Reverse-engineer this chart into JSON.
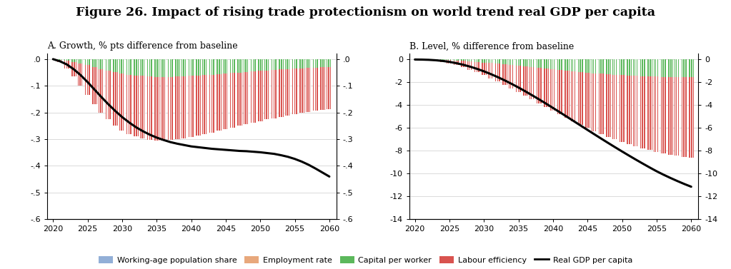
{
  "title": "Figure 26. Impact of rising trade protectionism on world trend real GDP per capita",
  "title_fontsize": 12.5,
  "subtitle_A": "A. Growth, % pts difference from baseline",
  "subtitle_B": "B. Level, % difference from baseline",
  "years": [
    2020,
    2021,
    2022,
    2023,
    2024,
    2025,
    2026,
    2027,
    2028,
    2029,
    2030,
    2031,
    2032,
    2033,
    2034,
    2035,
    2036,
    2037,
    2038,
    2039,
    2040,
    2041,
    2042,
    2043,
    2044,
    2045,
    2046,
    2047,
    2048,
    2049,
    2050,
    2051,
    2052,
    2053,
    2054,
    2055,
    2056,
    2057,
    2058,
    2059,
    2060
  ],
  "A_labour": [
    0.0,
    -0.01,
    -0.03,
    -0.055,
    -0.082,
    -0.11,
    -0.138,
    -0.163,
    -0.183,
    -0.2,
    -0.213,
    -0.222,
    -0.229,
    -0.234,
    -0.237,
    -0.238,
    -0.238,
    -0.237,
    -0.235,
    -0.232,
    -0.229,
    -0.225,
    -0.221,
    -0.217,
    -0.213,
    -0.208,
    -0.204,
    -0.2,
    -0.196,
    -0.192,
    -0.188,
    -0.184,
    -0.181,
    -0.177,
    -0.174,
    -0.171,
    -0.168,
    -0.165,
    -0.162,
    -0.16,
    -0.157
  ],
  "A_capital": [
    0.0,
    -0.002,
    -0.005,
    -0.01,
    -0.016,
    -0.023,
    -0.03,
    -0.037,
    -0.043,
    -0.049,
    -0.054,
    -0.058,
    -0.061,
    -0.063,
    -0.065,
    -0.066,
    -0.066,
    -0.066,
    -0.065,
    -0.064,
    -0.063,
    -0.061,
    -0.06,
    -0.058,
    -0.056,
    -0.054,
    -0.052,
    -0.05,
    -0.048,
    -0.046,
    -0.044,
    -0.042,
    -0.04,
    -0.039,
    -0.037,
    -0.036,
    -0.034,
    -0.033,
    -0.032,
    -0.031,
    -0.03
  ],
  "A_line": [
    0.0,
    -0.008,
    -0.02,
    -0.038,
    -0.06,
    -0.086,
    -0.114,
    -0.142,
    -0.169,
    -0.194,
    -0.217,
    -0.237,
    -0.255,
    -0.27,
    -0.283,
    -0.294,
    -0.303,
    -0.311,
    -0.317,
    -0.322,
    -0.327,
    -0.33,
    -0.333,
    -0.336,
    -0.338,
    -0.34,
    -0.342,
    -0.344,
    -0.345,
    -0.347,
    -0.349,
    -0.352,
    -0.355,
    -0.36,
    -0.366,
    -0.374,
    -0.384,
    -0.396,
    -0.41,
    -0.425,
    -0.44
  ],
  "B_labour": [
    0.0,
    -0.01,
    -0.04,
    -0.09,
    -0.17,
    -0.27,
    -0.4,
    -0.55,
    -0.72,
    -0.91,
    -1.12,
    -1.34,
    -1.57,
    -1.81,
    -2.06,
    -2.31,
    -2.57,
    -2.83,
    -3.1,
    -3.36,
    -3.62,
    -3.88,
    -4.13,
    -4.38,
    -4.62,
    -4.85,
    -5.07,
    -5.28,
    -5.48,
    -5.67,
    -5.85,
    -6.02,
    -6.18,
    -6.33,
    -6.47,
    -6.6,
    -6.71,
    -6.81,
    -6.9,
    -6.97,
    -7.03
  ],
  "B_capital": [
    0.0,
    -0.003,
    -0.01,
    -0.022,
    -0.04,
    -0.064,
    -0.094,
    -0.129,
    -0.169,
    -0.213,
    -0.261,
    -0.313,
    -0.368,
    -0.426,
    -0.486,
    -0.547,
    -0.61,
    -0.673,
    -0.737,
    -0.8,
    -0.863,
    -0.924,
    -0.984,
    -1.041,
    -1.096,
    -1.148,
    -1.197,
    -1.243,
    -1.286,
    -1.326,
    -1.363,
    -1.397,
    -1.427,
    -1.455,
    -1.479,
    -1.501,
    -1.519,
    -1.534,
    -1.547,
    -1.557,
    -1.564
  ],
  "B_line": [
    0.0,
    -0.008,
    -0.028,
    -0.065,
    -0.124,
    -0.208,
    -0.32,
    -0.46,
    -0.628,
    -0.82,
    -1.038,
    -1.28,
    -1.544,
    -1.829,
    -2.134,
    -2.456,
    -2.793,
    -3.143,
    -3.503,
    -3.872,
    -4.248,
    -4.63,
    -5.015,
    -5.402,
    -5.79,
    -6.177,
    -6.562,
    -6.944,
    -7.322,
    -7.695,
    -8.063,
    -8.424,
    -8.779,
    -9.126,
    -9.466,
    -9.797,
    -10.098,
    -10.383,
    -10.653,
    -10.91,
    -11.15
  ],
  "color_labour": "#d9534f",
  "color_capital": "#5cb85c",
  "color_working": "#92afd7",
  "color_employment": "#e8a87c",
  "A_ylim": [
    -0.6,
    0.02
  ],
  "A_yticks": [
    0.0,
    -0.1,
    -0.2,
    -0.3,
    -0.4,
    -0.5,
    -0.6
  ],
  "A_yticklabels": [
    ".0",
    "-.1",
    "-.2",
    "-.3",
    "-.4",
    "-.5",
    "-.6"
  ],
  "B_ylim": [
    -14,
    0.5
  ],
  "B_yticks": [
    0,
    -2,
    -4,
    -6,
    -8,
    -10,
    -12,
    -14
  ],
  "B_yticklabels": [
    "0",
    "-2",
    "-4",
    "-6",
    "-8",
    "-10",
    "-12",
    "-14"
  ],
  "xticks": [
    2020,
    2025,
    2030,
    2035,
    2040,
    2045,
    2050,
    2055,
    2060
  ],
  "legend_labels": [
    "Working-age population share",
    "Employment rate",
    "Capital per worker",
    "Labour efficiency",
    "Real GDP per capita"
  ],
  "legend_colors": [
    "#92afd7",
    "#e8a87c",
    "#5cb85c",
    "#d9534f",
    "black"
  ],
  "background_color": "#ffffff"
}
